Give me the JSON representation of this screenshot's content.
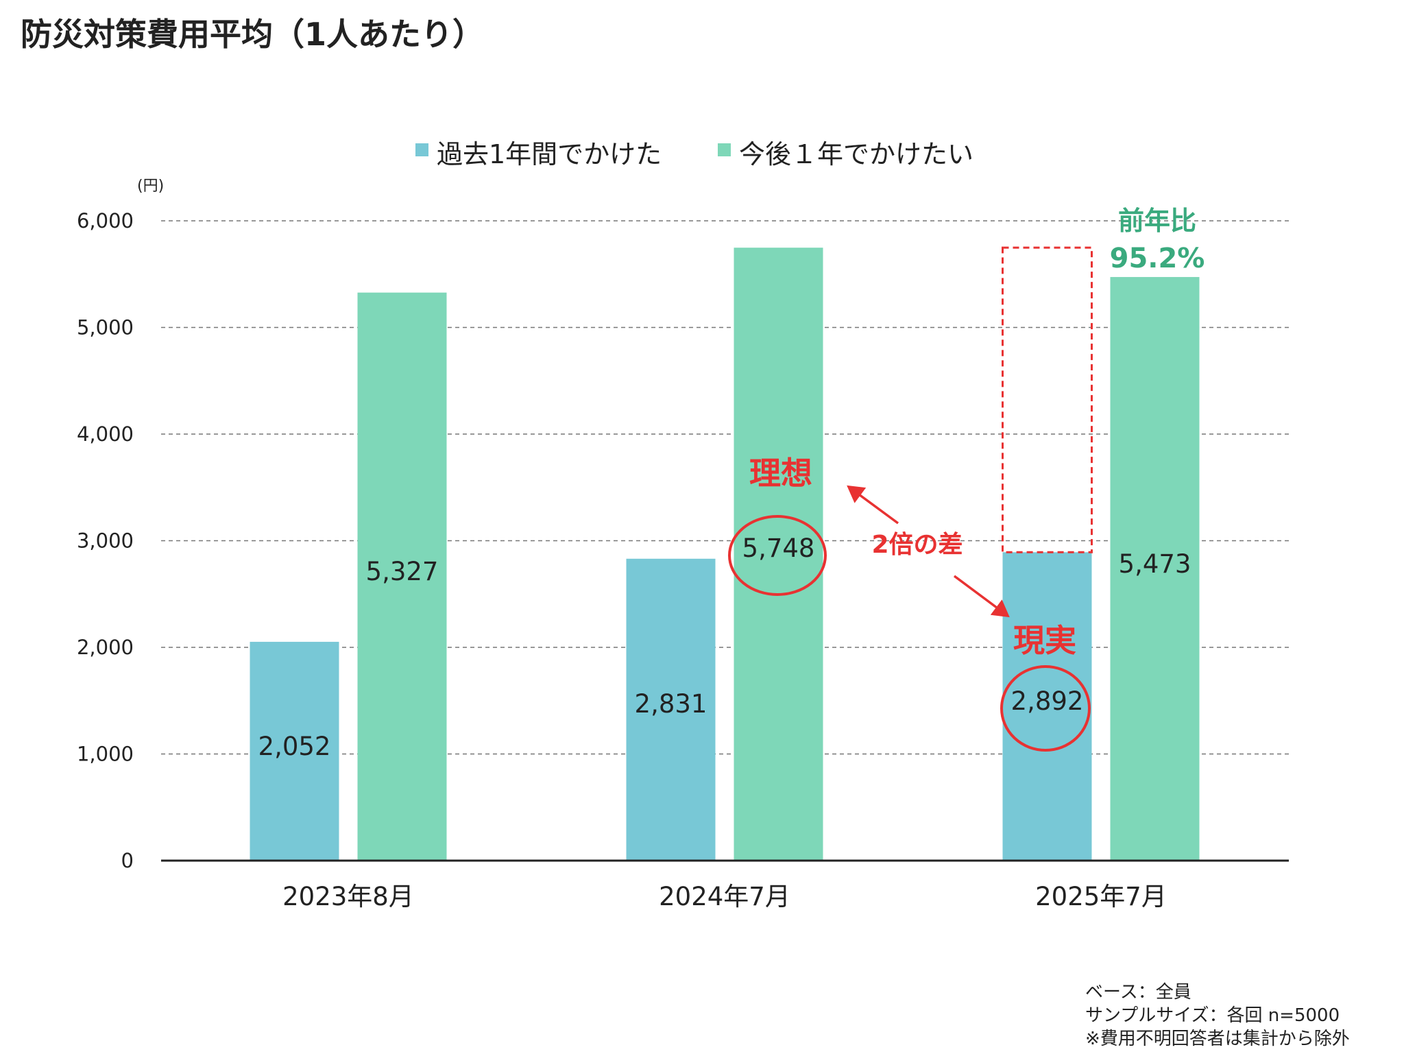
{
  "title": "防災対策費用平均（1人あたり）",
  "notes": [
    "ベース：全員",
    "サンプルサイズ：各回 n=5000",
    "※費用不明回答者は集計から除外"
  ],
  "colors": {
    "past": "#78c8d6",
    "future": "#7ed7b8",
    "annotation_red": "#e83232",
    "yoy_green": "#3aaa7e",
    "grid": "#777777",
    "axis": "#222222",
    "text": "#222222"
  },
  "chart_data": {
    "type": "bar",
    "title": "",
    "xlabel": "",
    "ylabel": "(円)",
    "ylim": [
      0,
      6000
    ],
    "yticks": [
      0,
      1000,
      2000,
      3000,
      4000,
      5000,
      6000
    ],
    "ytick_labels": [
      "0",
      "1,000",
      "2,000",
      "3,000",
      "4,000",
      "5,000",
      "6,000"
    ],
    "grid": true,
    "legend_position": "top-center",
    "categories": [
      "2023年8月",
      "2024年7月",
      "2025年7月"
    ],
    "series": [
      {
        "name": "過去1年間でかけた",
        "values": [
          2052,
          2831,
          2892
        ],
        "labels": [
          "2,052",
          "2,831",
          "2,892"
        ]
      },
      {
        "name": "今後１年でかけたい",
        "values": [
          5327,
          5748,
          5473
        ],
        "labels": [
          "5,327",
          "5,748",
          "5,473"
        ]
      }
    ],
    "annotations": {
      "ideal_label": "理想",
      "reality_label": "現実",
      "gap_label": "2倍の差",
      "yoy_label": "前年比",
      "yoy_value": "95.2%",
      "ideal_reference_value": 5748,
      "dashed_box_top_value": 5748,
      "dashed_box_bottom_value": 2892,
      "circled_values": [
        {
          "series": 1,
          "category": 1
        },
        {
          "series": 0,
          "category": 2
        }
      ]
    }
  }
}
